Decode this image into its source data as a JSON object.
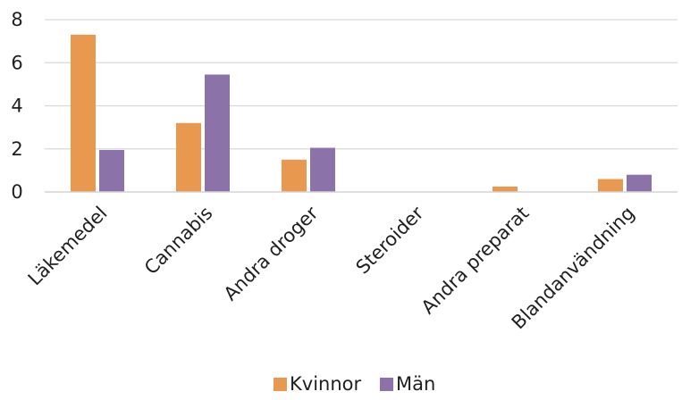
{
  "chart_data": {
    "type": "bar",
    "categories": [
      "Läkemedel",
      "Cannabis",
      "Andra droger",
      "Steroider",
      "Andra preparat",
      "Blandanvändning"
    ],
    "series": [
      {
        "name": "Kvinnor",
        "values": [
          7.3,
          3.2,
          1.5,
          0,
          0.25,
          0.6
        ],
        "color": "#E8994F"
      },
      {
        "name": "Män",
        "values": [
          1.95,
          5.45,
          2.05,
          0,
          0,
          0.8
        ],
        "color": "#8B72A8"
      }
    ],
    "y_ticks": [
      "0",
      "2",
      "4",
      "6",
      "8"
    ],
    "ylim": [
      0,
      8
    ],
    "grid": true,
    "legend_position": "bottom-center",
    "title": "",
    "xlabel": "",
    "ylabel": ""
  }
}
